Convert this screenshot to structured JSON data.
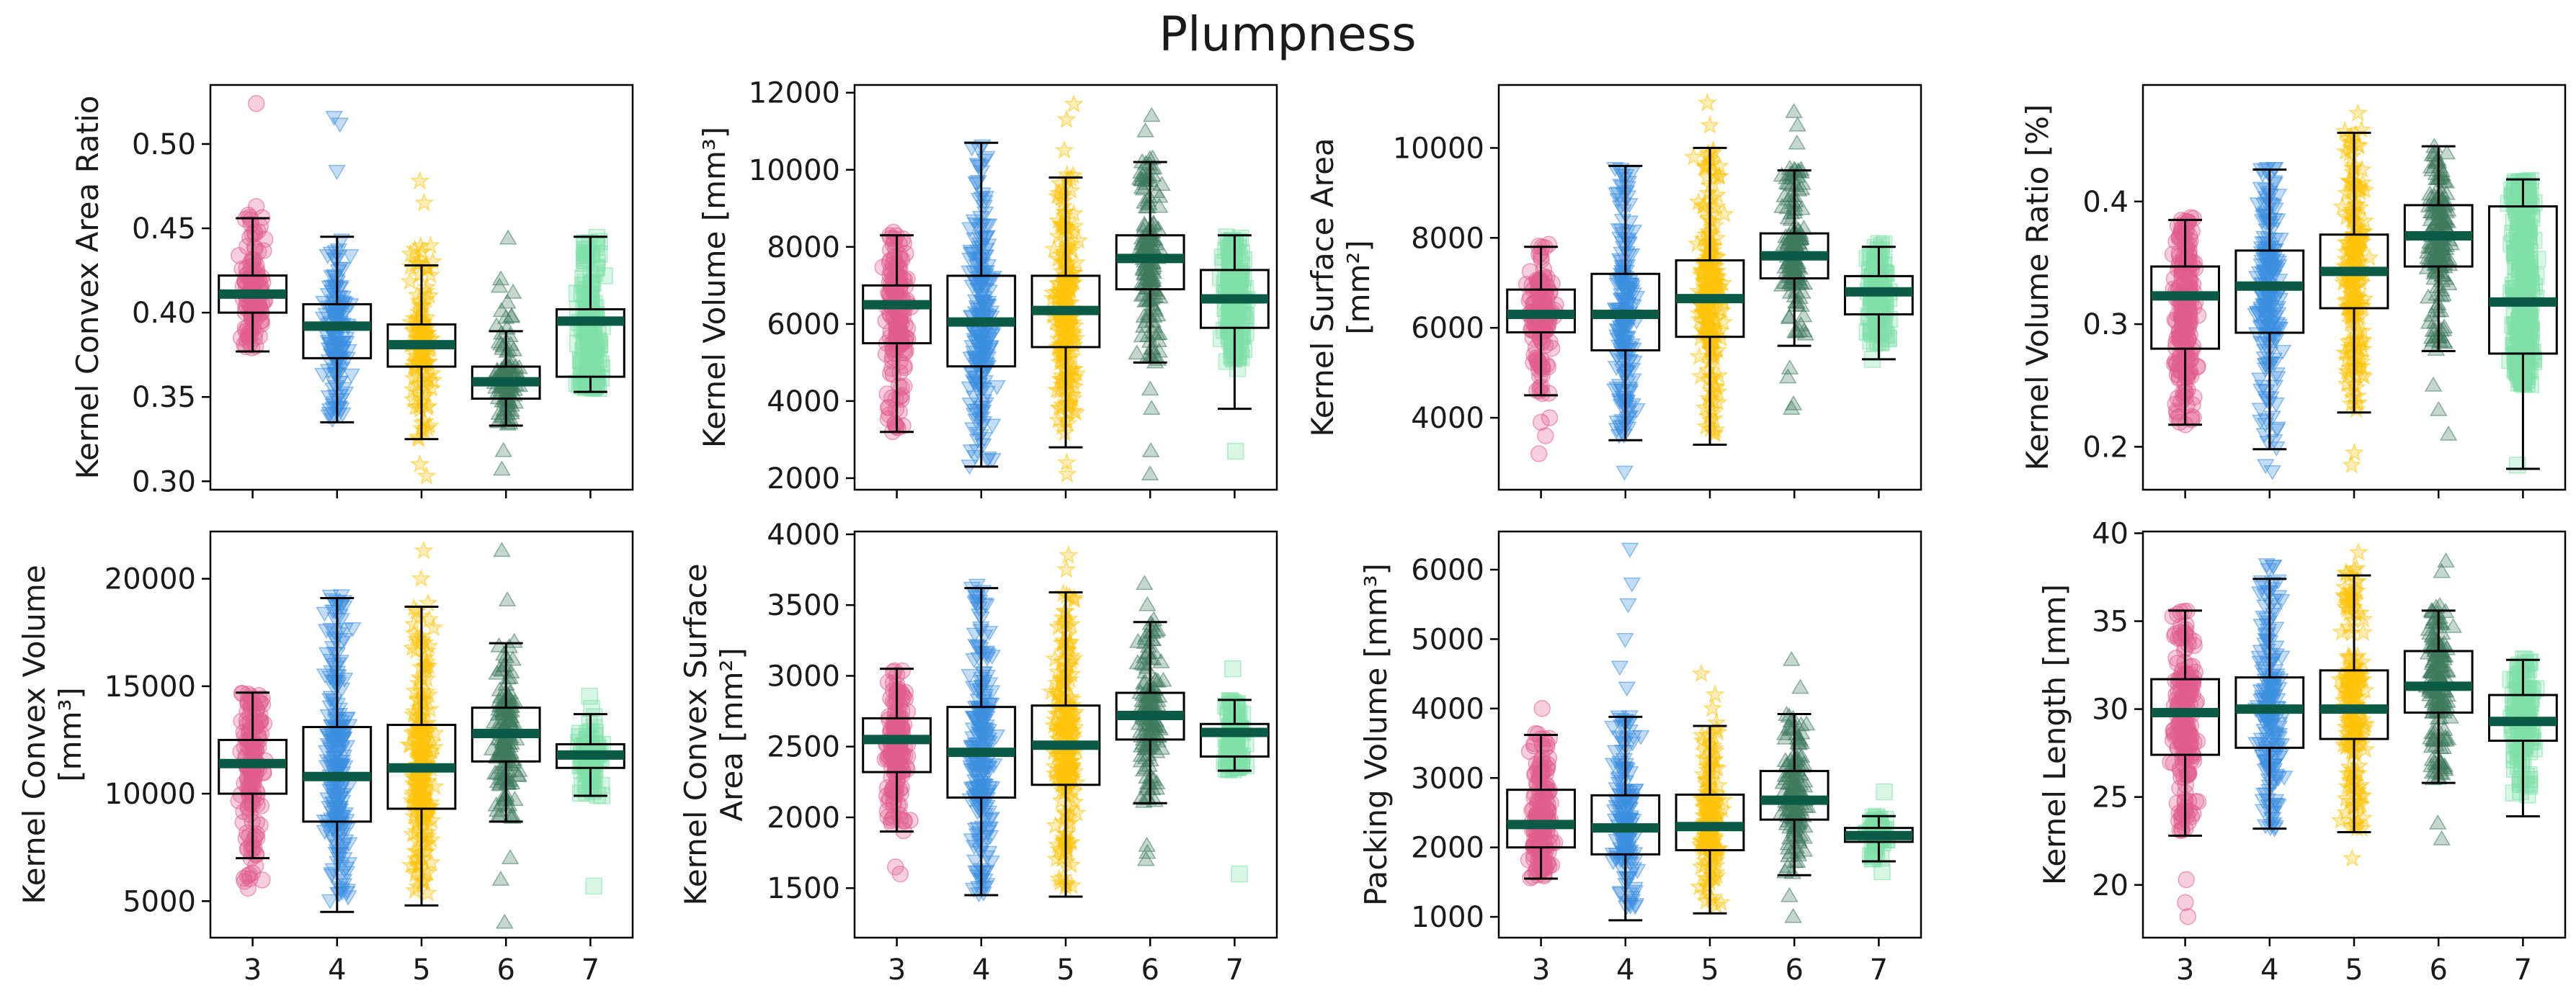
{
  "figure": {
    "title": "Plumpness",
    "groups": [
      "3",
      "4",
      "5",
      "6",
      "7"
    ],
    "group_styles": [
      {
        "group": "3",
        "marker": "circle",
        "color": "#E05C8E"
      },
      {
        "group": "4",
        "marker": "triangle-down",
        "color": "#3D8FE0"
      },
      {
        "group": "5",
        "marker": "star",
        "color": "#FFC20A"
      },
      {
        "group": "6",
        "marker": "triangle-up",
        "color": "#3E7A5E"
      },
      {
        "group": "7",
        "marker": "square",
        "color": "#7FE0A8"
      }
    ],
    "median_color": "#0B5A45"
  },
  "chart_data": [
    {
      "type": "box",
      "ylabel": [
        "Kernel Convex Area Ratio"
      ],
      "ylim": [
        0.295,
        0.535
      ],
      "yticks": [
        0.3,
        0.35,
        0.4,
        0.45,
        0.5
      ],
      "ytick_labels": [
        "0.30",
        "0.35",
        "0.40",
        "0.45",
        "0.50"
      ],
      "show_xticklabels": false,
      "boxes": [
        {
          "group": "3",
          "whisker_low": 0.377,
          "q1": 0.4,
          "median": 0.411,
          "q3": 0.422,
          "whisker_high": 0.456,
          "scatter_range": [
            0.377,
            0.465
          ],
          "outliers": [
            0.524
          ]
        },
        {
          "group": "4",
          "whisker_low": 0.335,
          "q1": 0.373,
          "median": 0.392,
          "q3": 0.405,
          "whisker_high": 0.445,
          "scatter_range": [
            0.335,
            0.445
          ],
          "outliers": [
            0.484,
            0.516,
            0.512
          ]
        },
        {
          "group": "5",
          "whisker_low": 0.325,
          "q1": 0.368,
          "median": 0.381,
          "q3": 0.393,
          "whisker_high": 0.428,
          "scatter_range": [
            0.325,
            0.44
          ],
          "outliers": [
            0.303,
            0.31,
            0.465,
            0.478
          ]
        },
        {
          "group": "6",
          "whisker_low": 0.333,
          "q1": 0.349,
          "median": 0.359,
          "q3": 0.368,
          "whisker_high": 0.389,
          "scatter_range": [
            0.333,
            0.42
          ],
          "outliers": [
            0.307,
            0.318,
            0.444
          ]
        },
        {
          "group": "7",
          "whisker_low": 0.353,
          "q1": 0.362,
          "median": 0.395,
          "q3": 0.402,
          "whisker_high": 0.445,
          "scatter_range": [
            0.355,
            0.445
          ],
          "outliers": []
        }
      ]
    },
    {
      "type": "box",
      "ylabel": [
        "Kernel Volume [mm³]"
      ],
      "ylim": [
        1700,
        12200
      ],
      "yticks": [
        2000,
        4000,
        6000,
        8000,
        10000,
        12000
      ],
      "ytick_labels": [
        "2000",
        "4000",
        "6000",
        "8000",
        "10000",
        "12000"
      ],
      "show_xticklabels": false,
      "boxes": [
        {
          "group": "3",
          "whisker_low": 3200,
          "q1": 5500,
          "median": 6500,
          "q3": 7000,
          "whisker_high": 8300,
          "scatter_range": [
            3200,
            8400
          ],
          "outliers": []
        },
        {
          "group": "4",
          "whisker_low": 2300,
          "q1": 4900,
          "median": 6050,
          "q3": 7250,
          "whisker_high": 10700,
          "scatter_range": [
            2300,
            10700
          ],
          "outliers": []
        },
        {
          "group": "5",
          "whisker_low": 2800,
          "q1": 5400,
          "median": 6350,
          "q3": 7250,
          "whisker_high": 9800,
          "scatter_range": [
            2800,
            9900
          ],
          "outliers": [
            2100,
            2400,
            10500,
            11300,
            11700
          ]
        },
        {
          "group": "6",
          "whisker_low": 5000,
          "q1": 6900,
          "median": 7700,
          "q3": 8300,
          "whisker_high": 10200,
          "scatter_range": [
            5000,
            10300
          ],
          "outliers": [
            2100,
            2700,
            3800,
            4300,
            11000,
            11400
          ]
        },
        {
          "group": "7",
          "whisker_low": 3800,
          "q1": 5900,
          "median": 6650,
          "q3": 7400,
          "whisker_high": 8300,
          "scatter_range": [
            4800,
            8300
          ],
          "outliers": [
            2700
          ]
        }
      ]
    },
    {
      "type": "box",
      "ylabel": [
        "Kernel Surface Area",
        "[mm²]"
      ],
      "ylim": [
        2400,
        11400
      ],
      "yticks": [
        4000,
        6000,
        8000,
        10000
      ],
      "ytick_labels": [
        "4000",
        "6000",
        "8000",
        "10000"
      ],
      "show_xticklabels": false,
      "boxes": [
        {
          "group": "3",
          "whisker_low": 4500,
          "q1": 5900,
          "median": 6300,
          "q3": 6850,
          "whisker_high": 7800,
          "scatter_range": [
            4500,
            7900
          ],
          "outliers": [
            3200,
            3600,
            3900,
            4000
          ]
        },
        {
          "group": "4",
          "whisker_low": 3500,
          "q1": 5500,
          "median": 6300,
          "q3": 7200,
          "whisker_high": 9600,
          "scatter_range": [
            3500,
            9600
          ],
          "outliers": [
            2800
          ]
        },
        {
          "group": "5",
          "whisker_low": 3400,
          "q1": 5800,
          "median": 6650,
          "q3": 7500,
          "whisker_high": 10000,
          "scatter_range": [
            3400,
            10000
          ],
          "outliers": [
            10500,
            11000
          ]
        },
        {
          "group": "6",
          "whisker_low": 5600,
          "q1": 7100,
          "median": 7600,
          "q3": 8100,
          "whisker_high": 9500,
          "scatter_range": [
            5600,
            9600
          ],
          "outliers": [
            4200,
            4300,
            4900,
            5100,
            10100,
            10500,
            10800
          ]
        },
        {
          "group": "7",
          "whisker_low": 5300,
          "q1": 6300,
          "median": 6800,
          "q3": 7150,
          "whisker_high": 7800,
          "scatter_range": [
            5600,
            7900
          ],
          "outliers": [
            5300
          ]
        }
      ]
    },
    {
      "type": "box",
      "ylabel": [
        "Kernel Volume Ratio [%]"
      ],
      "ylim": [
        0.165,
        0.495
      ],
      "yticks": [
        0.2,
        0.3,
        0.4
      ],
      "ytick_labels": [
        "0.2",
        "0.3",
        "0.4"
      ],
      "show_xticklabels": false,
      "boxes": [
        {
          "group": "3",
          "whisker_low": 0.218,
          "q1": 0.28,
          "median": 0.323,
          "q3": 0.347,
          "whisker_high": 0.385,
          "scatter_range": [
            0.218,
            0.388
          ],
          "outliers": []
        },
        {
          "group": "4",
          "whisker_low": 0.198,
          "q1": 0.293,
          "median": 0.331,
          "q3": 0.36,
          "whisker_high": 0.426,
          "scatter_range": [
            0.198,
            0.43
          ],
          "outliers": [
            0.18,
            0.185
          ]
        },
        {
          "group": "5",
          "whisker_low": 0.228,
          "q1": 0.313,
          "median": 0.343,
          "q3": 0.373,
          "whisker_high": 0.456,
          "scatter_range": [
            0.228,
            0.46
          ],
          "outliers": [
            0.185,
            0.195,
            0.472
          ]
        },
        {
          "group": "6",
          "whisker_low": 0.278,
          "q1": 0.347,
          "median": 0.372,
          "q3": 0.397,
          "whisker_high": 0.445,
          "scatter_range": [
            0.278,
            0.445
          ],
          "outliers": [
            0.21,
            0.23,
            0.25
          ]
        },
        {
          "group": "7",
          "whisker_low": 0.182,
          "q1": 0.276,
          "median": 0.318,
          "q3": 0.396,
          "whisker_high": 0.418,
          "scatter_range": [
            0.25,
            0.418
          ],
          "outliers": [
            0.185
          ]
        }
      ]
    },
    {
      "type": "box",
      "ylabel": [
        "Kernel Convex Volume",
        "[mm³]"
      ],
      "ylim": [
        3300,
        22200
      ],
      "yticks": [
        5000,
        10000,
        15000,
        20000
      ],
      "ytick_labels": [
        "5000",
        "10000",
        "15000",
        "20000"
      ],
      "show_xticklabels": true,
      "boxes": [
        {
          "group": "3",
          "whisker_low": 7000,
          "q1": 10000,
          "median": 11400,
          "q3": 12500,
          "whisker_high": 14700,
          "scatter_range": [
            5500,
            14700
          ],
          "outliers": []
        },
        {
          "group": "4",
          "whisker_low": 4500,
          "q1": 8700,
          "median": 10800,
          "q3": 13100,
          "whisker_high": 19100,
          "scatter_range": [
            4500,
            19300
          ],
          "outliers": []
        },
        {
          "group": "5",
          "whisker_low": 4800,
          "q1": 9300,
          "median": 11200,
          "q3": 13200,
          "whisker_high": 18700,
          "scatter_range": [
            4800,
            18900
          ],
          "outliers": [
            20000,
            21300
          ]
        },
        {
          "group": "6",
          "whisker_low": 8700,
          "q1": 11500,
          "median": 12800,
          "q3": 14000,
          "whisker_high": 17000,
          "scatter_range": [
            8700,
            17200
          ],
          "outliers": [
            4000,
            6000,
            7000,
            19000,
            21300
          ]
        },
        {
          "group": "7",
          "whisker_low": 9900,
          "q1": 11200,
          "median": 11800,
          "q3": 12300,
          "whisker_high": 13700,
          "scatter_range": [
            9800,
            15000
          ],
          "outliers": [
            5700
          ]
        }
      ]
    },
    {
      "type": "box",
      "ylabel": [
        "Kernel Convex Surface",
        "Area [mm²]"
      ],
      "ylim": [
        1150,
        4020
      ],
      "yticks": [
        1500,
        2000,
        2500,
        3000,
        3500,
        4000
      ],
      "ytick_labels": [
        "1500",
        "2000",
        "2500",
        "3000",
        "3500",
        "4000"
      ],
      "show_xticklabels": true,
      "boxes": [
        {
          "group": "3",
          "whisker_low": 1900,
          "q1": 2320,
          "median": 2550,
          "q3": 2700,
          "whisker_high": 3050,
          "scatter_range": [
            1900,
            3050
          ],
          "outliers": [
            1600,
            1650
          ]
        },
        {
          "group": "4",
          "whisker_low": 1450,
          "q1": 2140,
          "median": 2460,
          "q3": 2780,
          "whisker_high": 3620,
          "scatter_range": [
            1450,
            3650
          ],
          "outliers": []
        },
        {
          "group": "5",
          "whisker_low": 1440,
          "q1": 2230,
          "median": 2510,
          "q3": 2790,
          "whisker_high": 3590,
          "scatter_range": [
            1440,
            3650
          ],
          "outliers": [
            3750,
            3850
          ]
        },
        {
          "group": "6",
          "whisker_low": 2100,
          "q1": 2550,
          "median": 2720,
          "q3": 2880,
          "whisker_high": 3380,
          "scatter_range": [
            2100,
            3400
          ],
          "outliers": [
            1700,
            1750,
            1800,
            3500,
            3650
          ]
        },
        {
          "group": "7",
          "whisker_low": 2330,
          "q1": 2430,
          "median": 2600,
          "q3": 2660,
          "whisker_high": 2830,
          "scatter_range": [
            2330,
            2830
          ],
          "outliers": [
            1600,
            3050
          ]
        }
      ]
    },
    {
      "type": "box",
      "ylabel": [
        "Packing Volume [mm³]"
      ],
      "ylim": [
        700,
        6550
      ],
      "yticks": [
        1000,
        2000,
        3000,
        4000,
        5000,
        6000
      ],
      "ytick_labels": [
        "1000",
        "2000",
        "3000",
        "4000",
        "5000",
        "6000"
      ],
      "show_xticklabels": true,
      "boxes": [
        {
          "group": "3",
          "whisker_low": 1550,
          "q1": 2000,
          "median": 2330,
          "q3": 2830,
          "whisker_high": 3620,
          "scatter_range": [
            1550,
            3650
          ],
          "outliers": [
            4000
          ]
        },
        {
          "group": "4",
          "whisker_low": 950,
          "q1": 1900,
          "median": 2280,
          "q3": 2750,
          "whisker_high": 3880,
          "scatter_range": [
            950,
            3900
          ],
          "outliers": [
            4300,
            4600,
            5000,
            5500,
            5800,
            6300
          ]
        },
        {
          "group": "5",
          "whisker_low": 1050,
          "q1": 1960,
          "median": 2300,
          "q3": 2760,
          "whisker_high": 3750,
          "scatter_range": [
            1050,
            3800
          ],
          "outliers": [
            4000,
            4200,
            4500
          ]
        },
        {
          "group": "6",
          "whisker_low": 1600,
          "q1": 2400,
          "median": 2680,
          "q3": 3100,
          "whisker_high": 3920,
          "scatter_range": [
            1600,
            3950
          ],
          "outliers": [
            1000,
            1300,
            4300,
            4700
          ]
        },
        {
          "group": "7",
          "whisker_low": 1800,
          "q1": 2080,
          "median": 2170,
          "q3": 2280,
          "whisker_high": 2450,
          "scatter_range": [
            1800,
            2450
          ],
          "outliers": [
            1650,
            2800
          ]
        }
      ]
    },
    {
      "type": "box",
      "ylabel": [
        "Kernel Length [mm]"
      ],
      "ylim": [
        17.0,
        40.1
      ],
      "yticks": [
        20,
        25,
        30,
        35,
        40
      ],
      "ytick_labels": [
        "20",
        "25",
        "30",
        "35",
        "40"
      ],
      "show_xticklabels": true,
      "boxes": [
        {
          "group": "3",
          "whisker_low": 22.8,
          "q1": 27.4,
          "median": 29.8,
          "q3": 31.7,
          "whisker_high": 35.6,
          "scatter_range": [
            22.8,
            35.6
          ],
          "outliers": [
            18.2,
            19.0,
            20.3
          ]
        },
        {
          "group": "4",
          "whisker_low": 23.2,
          "q1": 27.8,
          "median": 30.0,
          "q3": 31.8,
          "whisker_high": 37.4,
          "scatter_range": [
            23.2,
            38.5
          ],
          "outliers": []
        },
        {
          "group": "5",
          "whisker_low": 23.0,
          "q1": 28.3,
          "median": 30.0,
          "q3": 32.2,
          "whisker_high": 37.6,
          "scatter_range": [
            23.0,
            38.0
          ],
          "outliers": [
            21.5,
            38.9
          ]
        },
        {
          "group": "6",
          "whisker_low": 25.8,
          "q1": 29.8,
          "median": 31.3,
          "q3": 33.3,
          "whisker_high": 35.6,
          "scatter_range": [
            25.8,
            36.0
          ],
          "outliers": [
            22.6,
            23.5,
            37.8,
            38.4
          ]
        },
        {
          "group": "7",
          "whisker_low": 23.9,
          "q1": 28.2,
          "median": 29.3,
          "q3": 30.8,
          "whisker_high": 32.8,
          "scatter_range": [
            25.0,
            33.0
          ],
          "outliers": []
        }
      ]
    }
  ]
}
